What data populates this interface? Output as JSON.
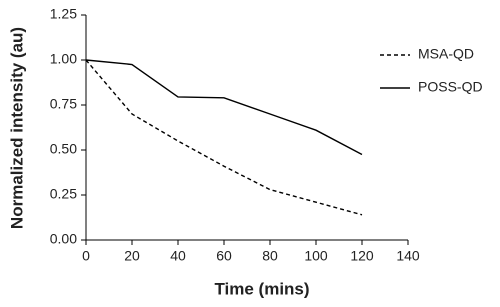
{
  "chart_data": {
    "type": "line",
    "x_label": "Time (mins)",
    "y_label": "Normalized intensity (au)",
    "x": [
      0,
      20,
      40,
      60,
      80,
      100,
      120
    ],
    "series": [
      {
        "name": "MSA-QD",
        "color": "#000000",
        "dash": "dashed",
        "values": [
          1.0,
          0.7,
          0.55,
          0.41,
          0.28,
          0.21,
          0.14
        ]
      },
      {
        "name": "POSS-QD",
        "color": "#000000",
        "dash": "solid",
        "values": [
          1.0,
          0.975,
          0.795,
          0.79,
          0.7,
          0.61,
          0.475
        ]
      }
    ],
    "xlim": [
      0,
      140
    ],
    "xticks": [
      0,
      20,
      40,
      60,
      80,
      100,
      120,
      140
    ],
    "ylim": [
      0,
      1.25
    ],
    "yticks": [
      {
        "value": 0,
        "label": "0.00"
      },
      0.25,
      {
        "value": 0.5,
        "label": "0.50"
      },
      0.75,
      {
        "value": 1,
        "label": "1.00"
      },
      1.25
    ],
    "grid": false,
    "legend": "upper right"
  }
}
